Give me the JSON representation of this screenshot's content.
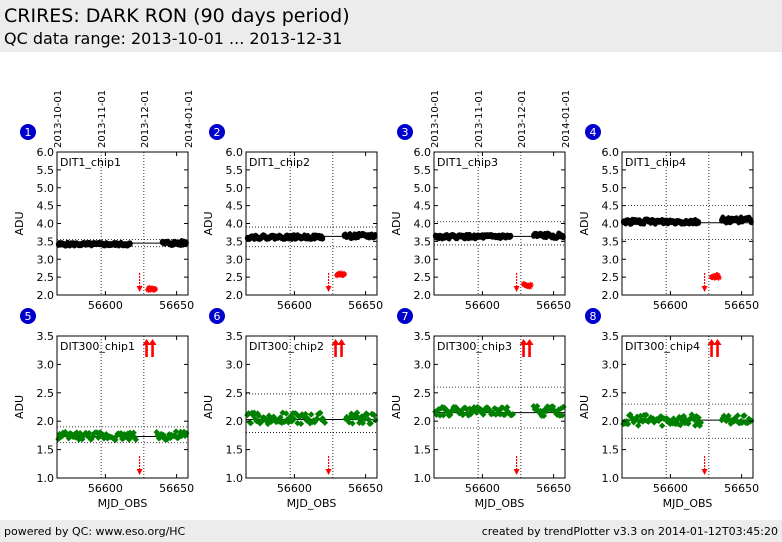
{
  "header": {
    "title": "CRIRES: DARK RON (90 days period)",
    "subtitle": "QC data range: 2013-10-01 ... 2013-12-31"
  },
  "footer": {
    "left": "powered by QC: www.eso.org/HC",
    "right": "created by trendPlotter v3.3 on 2014-01-12T03:45:20"
  },
  "colors": {
    "black_series": "#000000",
    "green_series": "#008000",
    "outlier": "#ff0000",
    "badge": "#0000cc"
  },
  "chart_data": [
    {
      "type": "scatter",
      "badge": "1",
      "label": "DIT1_chip1",
      "ylabel": "ADU",
      "xlabel": "",
      "xlim": [
        56566,
        56658
      ],
      "ylim": [
        2.0,
        6.0
      ],
      "yticks": [
        "2.0",
        "2.5",
        "3.0",
        "3.5",
        "4.0",
        "4.5",
        "5.0",
        "5.5",
        "6.0"
      ],
      "xticks": [
        "56600",
        "56650"
      ],
      "date_ticks": [
        "2013-10-01",
        "2013-11-01",
        "2013-12-01",
        "2014-01-01"
      ],
      "date_tick_mjd": [
        56566,
        56597,
        56627,
        56658
      ],
      "mean": 3.45,
      "limits": [
        3.35,
        3.55
      ],
      "series_color": "black",
      "groups": [
        {
          "x0": 56567,
          "x1": 56618,
          "y": 3.42,
          "amp": 0.03
        },
        {
          "x0": 56640,
          "x1": 56657,
          "y": 3.45,
          "amp": 0.05
        }
      ],
      "outliers": [
        {
          "x0": 56630,
          "x1": 56635,
          "y": 2.18
        }
      ],
      "arrows": [
        {
          "x": 56624,
          "dir": "down",
          "position": "bottom"
        }
      ]
    },
    {
      "type": "scatter",
      "badge": "2",
      "label": "DIT1_chip2",
      "ylabel": "ADU",
      "xlabel": "",
      "xlim": [
        56566,
        56658
      ],
      "ylim": [
        2.0,
        6.0
      ],
      "yticks": [
        "2.0",
        "2.5",
        "3.0",
        "3.5",
        "4.0",
        "4.5",
        "5.0",
        "5.5",
        "6.0"
      ],
      "xticks": [
        "56600",
        "56650"
      ],
      "date_ticks": [],
      "date_tick_mjd": [],
      "mean": 3.64,
      "limits": [
        3.35,
        3.9
      ],
      "series_color": "black",
      "groups": [
        {
          "x0": 56567,
          "x1": 56620,
          "y": 3.62,
          "amp": 0.04
        },
        {
          "x0": 56635,
          "x1": 56657,
          "y": 3.65,
          "amp": 0.05
        }
      ],
      "outliers": [
        {
          "x0": 56630,
          "x1": 56635,
          "y": 2.58
        }
      ],
      "arrows": [
        {
          "x": 56624,
          "dir": "down",
          "position": "bottom"
        }
      ]
    },
    {
      "type": "scatter",
      "badge": "3",
      "label": "DIT1_chip3",
      "ylabel": "ADU",
      "xlabel": "",
      "xlim": [
        56566,
        56658
      ],
      "ylim": [
        2.0,
        6.0
      ],
      "yticks": [
        "2.0",
        "2.5",
        "3.0",
        "3.5",
        "4.0",
        "4.5",
        "5.0",
        "5.5",
        "6.0"
      ],
      "xticks": [
        "56600",
        "56650"
      ],
      "date_ticks": [
        "2013-10-01",
        "2013-11-01",
        "2013-12-01",
        "2014-01-01"
      ],
      "date_tick_mjd": [
        56566,
        56597,
        56627,
        56658
      ],
      "mean": 3.64,
      "limits": [
        3.4,
        4.05
      ],
      "series_color": "black",
      "groups": [
        {
          "x0": 56567,
          "x1": 56620,
          "y": 3.63,
          "amp": 0.04
        },
        {
          "x0": 56636,
          "x1": 56657,
          "y": 3.66,
          "amp": 0.05
        }
      ],
      "outliers": [
        {
          "x0": 56629,
          "x1": 56634,
          "y": 2.27
        }
      ],
      "arrows": [
        {
          "x": 56624,
          "dir": "down",
          "position": "bottom"
        }
      ]
    },
    {
      "type": "scatter",
      "badge": "4",
      "label": "DIT1_chip4",
      "ylabel": "ADU",
      "xlabel": "",
      "xlim": [
        56566,
        56658
      ],
      "ylim": [
        2.0,
        6.0
      ],
      "yticks": [
        "2.0",
        "2.5",
        "3.0",
        "3.5",
        "4.0",
        "4.5",
        "5.0",
        "5.5",
        "6.0"
      ],
      "xticks": [
        "56600",
        "56650"
      ],
      "date_ticks": [],
      "date_tick_mjd": [],
      "mean": 4.02,
      "limits": [
        3.55,
        4.5
      ],
      "series_color": "black",
      "groups": [
        {
          "x0": 56567,
          "x1": 56620,
          "y": 4.05,
          "amp": 0.05
        },
        {
          "x0": 56636,
          "x1": 56657,
          "y": 4.1,
          "amp": 0.06
        }
      ],
      "outliers": [
        {
          "x0": 56629,
          "x1": 56634,
          "y": 2.52
        }
      ],
      "arrows": [
        {
          "x": 56624,
          "dir": "down",
          "position": "bottom"
        }
      ]
    },
    {
      "type": "scatter",
      "badge": "5",
      "label": "DIT300_chip1",
      "ylabel": "ADU",
      "xlabel": "MJD_OBS",
      "xlim": [
        56566,
        56658
      ],
      "ylim": [
        1.0,
        3.5
      ],
      "yticks": [
        "1.0",
        "1.5",
        "2.0",
        "2.5",
        "3.0",
        "3.5"
      ],
      "xticks": [
        "56600",
        "56650"
      ],
      "date_ticks": [],
      "date_tick_mjd": [],
      "mean": 1.73,
      "limits": [
        1.62,
        1.9
      ],
      "series_color": "green",
      "groups": [
        {
          "x0": 56567,
          "x1": 56622,
          "y": 1.74,
          "amp": 0.07
        },
        {
          "x0": 56636,
          "x1": 56657,
          "y": 1.74,
          "amp": 0.08
        }
      ],
      "outliers": [],
      "arrows": [
        {
          "x": 56624,
          "dir": "down",
          "position": "bottom"
        },
        {
          "x": 56631,
          "dir": "up",
          "position": "top",
          "double": true
        }
      ]
    },
    {
      "type": "scatter",
      "badge": "6",
      "label": "DIT300_chip2",
      "ylabel": "ADU",
      "xlabel": "MJD_OBS",
      "xlim": [
        56566,
        56658
      ],
      "ylim": [
        1.0,
        3.5
      ],
      "yticks": [
        "1.0",
        "1.5",
        "2.0",
        "2.5",
        "3.0",
        "3.5"
      ],
      "xticks": [
        "56600",
        "56650"
      ],
      "date_ticks": [],
      "date_tick_mjd": [],
      "mean": 2.03,
      "limits": [
        1.8,
        2.48
      ],
      "series_color": "green",
      "groups": [
        {
          "x0": 56567,
          "x1": 56622,
          "y": 2.05,
          "amp": 0.1
        },
        {
          "x0": 56636,
          "x1": 56657,
          "y": 2.05,
          "amp": 0.1
        }
      ],
      "outliers": [],
      "arrows": [
        {
          "x": 56624,
          "dir": "down",
          "position": "bottom"
        },
        {
          "x": 56631,
          "dir": "up",
          "position": "top",
          "double": true
        }
      ]
    },
    {
      "type": "scatter",
      "badge": "7",
      "label": "DIT300_chip3",
      "ylabel": "ADU",
      "xlabel": "MJD_OBS",
      "xlim": [
        56566,
        56658
      ],
      "ylim": [
        1.0,
        3.5
      ],
      "yticks": [
        "1.0",
        "1.5",
        "2.0",
        "2.5",
        "3.0",
        "3.5"
      ],
      "xticks": [
        "56600",
        "56650"
      ],
      "date_ticks": [],
      "date_tick_mjd": [],
      "mean": 2.15,
      "limits": [
        1.88,
        2.6
      ],
      "series_color": "green",
      "groups": [
        {
          "x0": 56567,
          "x1": 56622,
          "y": 2.17,
          "amp": 0.08
        },
        {
          "x0": 56636,
          "x1": 56657,
          "y": 2.18,
          "amp": 0.09
        }
      ],
      "outliers": [],
      "arrows": [
        {
          "x": 56624,
          "dir": "down",
          "position": "bottom"
        },
        {
          "x": 56631,
          "dir": "up",
          "position": "top",
          "double": true
        }
      ]
    },
    {
      "type": "scatter",
      "badge": "8",
      "label": "DIT300_chip4",
      "ylabel": "ADU",
      "xlabel": "MJD_OBS",
      "xlim": [
        56566,
        56658
      ],
      "ylim": [
        1.0,
        3.5
      ],
      "yticks": [
        "1.0",
        "1.5",
        "2.0",
        "2.5",
        "3.0",
        "3.5"
      ],
      "xticks": [
        "56600",
        "56650"
      ],
      "date_ticks": [],
      "date_tick_mjd": [],
      "mean": 2.02,
      "limits": [
        1.7,
        2.3
      ],
      "series_color": "green",
      "groups": [
        {
          "x0": 56567,
          "x1": 56622,
          "y": 2.02,
          "amp": 0.1
        },
        {
          "x0": 56636,
          "x1": 56657,
          "y": 2.02,
          "amp": 0.08
        }
      ],
      "outliers": [],
      "arrows": [
        {
          "x": 56624,
          "dir": "down",
          "position": "bottom"
        },
        {
          "x": 56631,
          "dir": "up",
          "position": "top",
          "double": true
        }
      ]
    }
  ]
}
